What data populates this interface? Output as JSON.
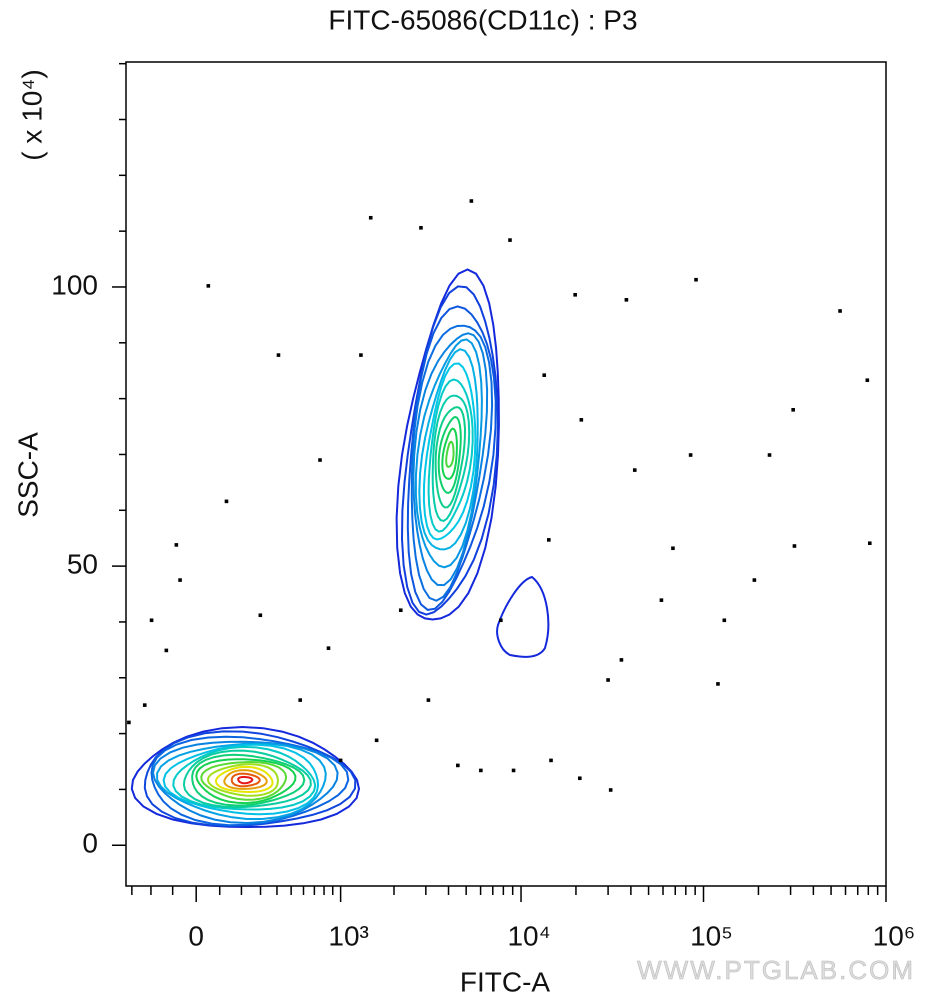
{
  "chart_data": {
    "type": "contour",
    "title": "FITC-65086(CD11c) : P3",
    "x_label": "FITC-A",
    "y_label": "SSC-A",
    "y_multiplier": "( x 10⁴)",
    "watermark": "WWW.PTGLAB.COM",
    "xscale": "biexponential",
    "xlim": [
      -334,
      1000000
    ],
    "xticks": [
      0,
      {
        "value": 1000,
        "label": "10³"
      },
      {
        "value": 10000,
        "label": "10⁴"
      },
      {
        "value": 100000,
        "label": "10⁵"
      },
      {
        "value": 1000000,
        "label": "10⁶"
      }
    ],
    "xminorticks": [
      -300,
      -200,
      -100,
      100,
      200,
      300,
      400,
      500,
      600,
      700,
      800,
      900,
      2000,
      3000,
      4000,
      5000,
      6000,
      7000,
      8000,
      9000,
      20000,
      30000,
      40000,
      50000,
      60000,
      70000,
      80000,
      90000,
      200000,
      300000,
      400000,
      500000,
      600000,
      700000,
      800000,
      900000
    ],
    "ylim": [
      -7.3,
      140.3
    ],
    "yticks": [
      0,
      50,
      100
    ],
    "yminorticks": [
      10,
      20,
      30,
      40,
      60,
      70,
      80,
      90,
      110,
      120,
      130,
      140
    ],
    "point_color": "#000000",
    "x": [
      51,
      1483,
      2820,
      5340,
      8700,
      19800,
      37800,
      91000,
      560000,
      790000,
      310000,
      230000,
      815000,
      315000,
      190000,
      130000,
      120000,
      31000,
      21000,
      9100,
      14600,
      35500,
      68000,
      42000,
      21400,
      13400,
      1306,
      757,
      410,
      130,
      -84,
      -68,
      -197,
      -128,
      -231,
      -317,
      850,
      2181,
      3100,
      6020,
      572,
      299,
      1000,
      1600,
      4500,
      30000,
      85000,
      58800,
      7750,
      14200
    ],
    "y": [
      100.2,
      112.4,
      110.6,
      115.4,
      108.4,
      98.6,
      97.7,
      101.3,
      95.7,
      83.3,
      78,
      69.9,
      54.1,
      53.6,
      47.5,
      40.3,
      28.9,
      9.9,
      12,
      13.4,
      15.2,
      33.2,
      53.2,
      67.2,
      76.2,
      84.2,
      87.8,
      69,
      87.8,
      61.6,
      53.8,
      47.5,
      40.3,
      34.9,
      25.1,
      22,
      35.3,
      42.1,
      26,
      13.4,
      26,
      41.2,
      15.2,
      18.8,
      14.3,
      29.6,
      69.9,
      43.9,
      40.3,
      54.7
    ]
  }
}
